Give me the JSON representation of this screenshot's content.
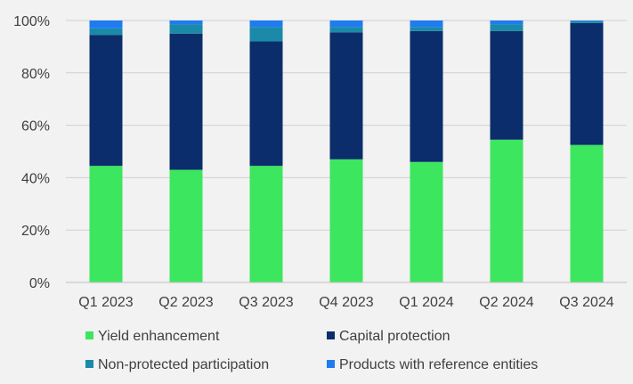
{
  "chart_data": {
    "type": "bar",
    "stacked": true,
    "categories": [
      "Q1 2023",
      "Q2 2023",
      "Q3 2023",
      "Q4 2023",
      "Q1 2024",
      "Q2 2024",
      "Q3 2024"
    ],
    "series": [
      {
        "name": "Yield enhancement",
        "color": "#3ce65f",
        "values": [
          44.5,
          43.0,
          44.5,
          47.0,
          46.0,
          54.5,
          52.5
        ]
      },
      {
        "name": "Capital protection",
        "color": "#0b2d6b",
        "values": [
          50.0,
          52.0,
          47.5,
          48.5,
          50.0,
          41.5,
          46.5
        ]
      },
      {
        "name": "Non-protected participation",
        "color": "#1a8aa8",
        "values": [
          2.5,
          3.5,
          5.5,
          2.0,
          1.5,
          2.5,
          0.7
        ]
      },
      {
        "name": "Products with reference entities",
        "color": "#1f7cf0",
        "values": [
          3.0,
          1.5,
          2.5,
          2.5,
          2.5,
          1.5,
          0.3
        ]
      }
    ],
    "ylim": [
      0,
      100
    ],
    "yticks": [
      0,
      20,
      40,
      60,
      80,
      100
    ],
    "ytick_labels": [
      "0%",
      "20%",
      "40%",
      "60%",
      "80%",
      "100%"
    ],
    "grid": true,
    "legend_position": "bottom",
    "title": "",
    "xlabel": "",
    "ylabel": ""
  }
}
